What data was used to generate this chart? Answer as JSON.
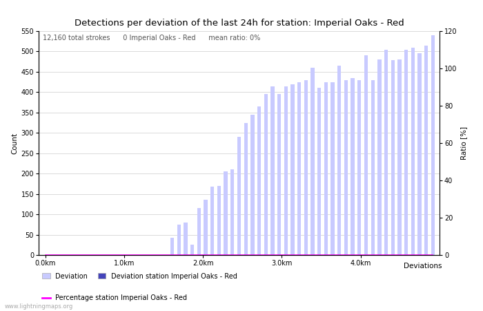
{
  "title": "Detections per deviation of the last 24h for station: Imperial Oaks - Red",
  "subtitle": "12,160 total strokes      0 Imperial Oaks - Red      mean ratio: 0%",
  "xlabel": "Deviations",
  "ylabel_left": "Count",
  "ylabel_right": "Ratio [%]",
  "ylim_left": [
    0,
    550
  ],
  "ylim_right": [
    0,
    120
  ],
  "yticks_left": [
    0,
    50,
    100,
    150,
    200,
    250,
    300,
    350,
    400,
    450,
    500,
    550
  ],
  "yticks_right": [
    0,
    20,
    40,
    60,
    80,
    100,
    120
  ],
  "xtick_labels": [
    "0.0km",
    "1.0km",
    "2.0km",
    "3.0km",
    "4.0km"
  ],
  "bar_color_deviation": "#c8caff",
  "bar_color_station": "#4444bb",
  "line_color": "#ff00ff",
  "background_color": "#ffffff",
  "grid_color": "#cccccc",
  "watermark": "www.lightningmaps.org",
  "deviation_values": [
    0,
    0,
    0,
    0,
    0,
    0,
    0,
    0,
    0,
    0,
    0,
    0,
    0,
    0,
    0,
    0,
    0,
    0,
    0,
    42,
    75,
    80,
    25,
    115,
    135,
    168,
    170,
    205,
    210,
    290,
    325,
    345,
    365,
    395,
    415,
    395,
    415,
    420,
    425,
    430,
    460,
    410,
    425,
    425,
    465,
    430,
    435,
    430,
    490,
    430,
    480,
    505,
    478,
    480,
    505,
    510,
    495,
    515,
    540
  ],
  "station_values": [
    0,
    0,
    0,
    0,
    0,
    0,
    0,
    0,
    0,
    0,
    0,
    0,
    0,
    0,
    0,
    0,
    0,
    0,
    0,
    0,
    0,
    0,
    0,
    0,
    0,
    0,
    0,
    0,
    0,
    0,
    0,
    0,
    0,
    0,
    0,
    0,
    0,
    0,
    0,
    0,
    0,
    0,
    0,
    0,
    0,
    0,
    0,
    0,
    0,
    0,
    0,
    0,
    0,
    0,
    0,
    0,
    0,
    0,
    0
  ],
  "ratio_values": [
    0,
    0,
    0,
    0,
    0,
    0,
    0,
    0,
    0,
    0,
    0,
    0,
    0,
    0,
    0,
    0,
    0,
    0,
    0,
    0,
    0,
    0,
    0,
    0,
    0,
    0,
    0,
    0,
    0,
    0,
    0,
    0,
    0,
    0,
    0,
    0,
    0,
    0,
    0,
    0,
    0,
    0,
    0,
    0,
    0,
    0,
    0,
    0,
    0,
    0,
    0,
    0,
    0,
    0,
    0,
    0,
    0,
    0,
    0
  ],
  "n_bars": 59,
  "xtick_positions": [
    0,
    11.8,
    23.6,
    35.4,
    47.2
  ],
  "title_fontsize": 9.5,
  "subtitle_fontsize": 7,
  "axis_fontsize": 7.5,
  "tick_fontsize": 7
}
